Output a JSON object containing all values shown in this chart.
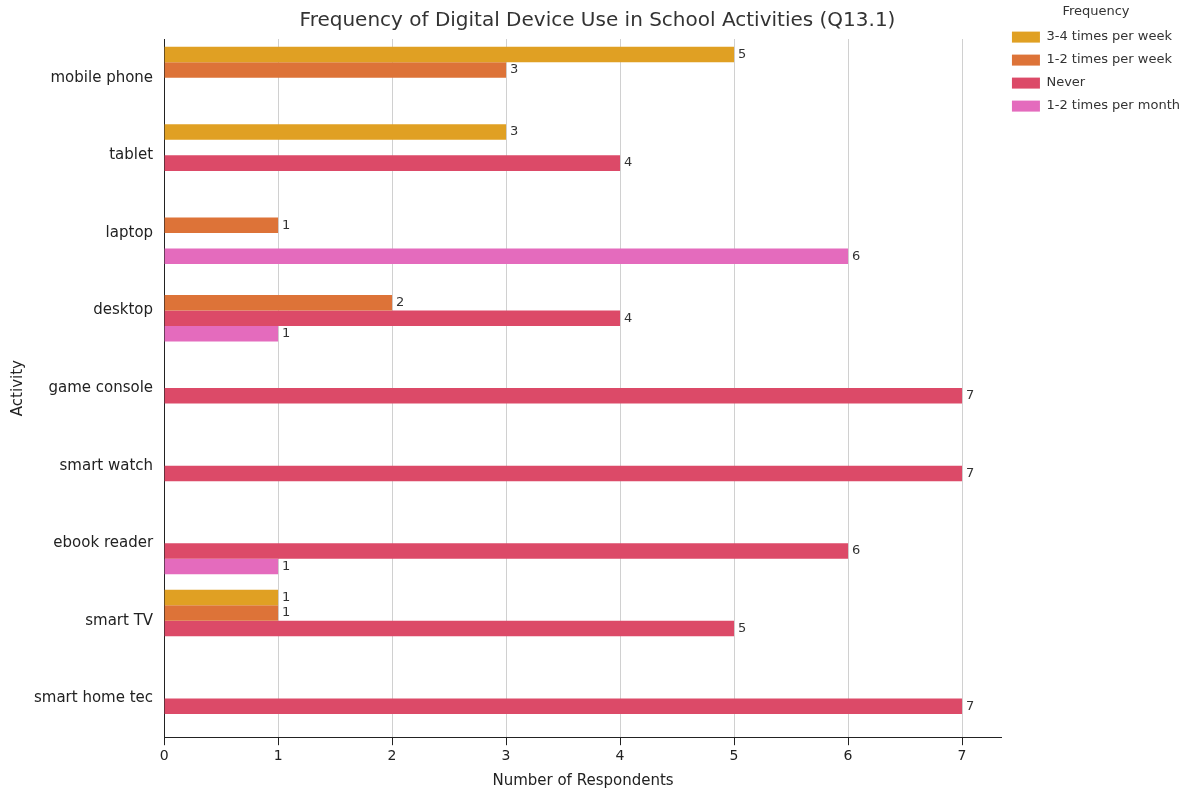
{
  "chart_data": {
    "type": "bar",
    "orientation": "horizontal",
    "title": "Frequency of Digital Device Use in School Activities (Q13.1)",
    "xlabel": "Number of Respondents",
    "ylabel": "Activity",
    "legend_title": "Frequency",
    "categories": [
      "mobile phone",
      "tablet",
      "laptop",
      "desktop",
      "game console",
      "smart watch",
      "ebook reader",
      "smart TV",
      "smart home tec"
    ],
    "series": [
      {
        "name": "3-4 times per week",
        "color": "#e0a023",
        "values": [
          5,
          3,
          null,
          null,
          null,
          null,
          null,
          1,
          null
        ]
      },
      {
        "name": "1-2 times per week",
        "color": "#dd7338",
        "values": [
          3,
          null,
          1,
          2,
          null,
          null,
          null,
          1,
          null
        ]
      },
      {
        "name": "Never",
        "color": "#dc4a68",
        "values": [
          null,
          4,
          null,
          4,
          7,
          7,
          6,
          5,
          7
        ]
      },
      {
        "name": "1-2 times per month",
        "color": "#e46bbd",
        "values": [
          null,
          null,
          6,
          1,
          null,
          null,
          1,
          null,
          null
        ]
      }
    ],
    "xlim": [
      0,
      7.35
    ],
    "xticks": [
      0,
      1,
      2,
      3,
      4,
      5,
      6,
      7
    ],
    "grid": "x",
    "legend": "top right",
    "data_labels": true
  }
}
